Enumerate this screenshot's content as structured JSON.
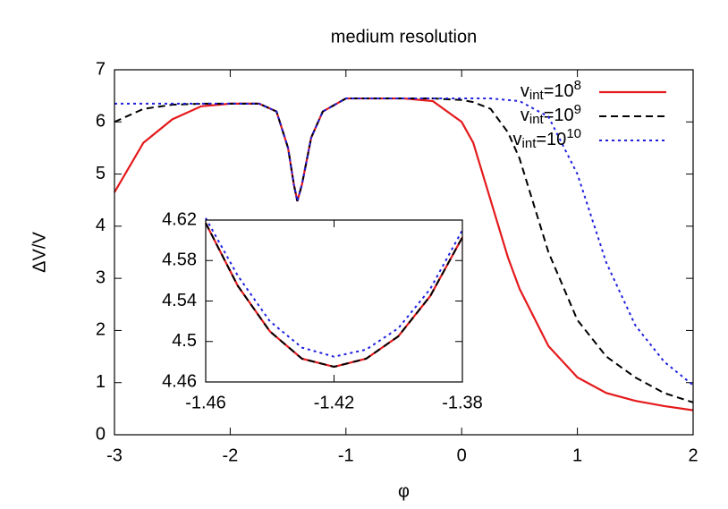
{
  "chart_data": [
    {
      "type": "line",
      "title": "medium resolution",
      "xlabel": "φ",
      "ylabel": "ΔV/V",
      "x": [
        -3,
        -2.75,
        -2.5,
        -2.25,
        -2,
        -1.75,
        -1.6,
        -1.5,
        -1.45,
        -1.42,
        -1.38,
        -1.3,
        -1.2,
        -1,
        -0.75,
        -0.5,
        -0.25,
        0,
        0.1,
        0.25,
        0.4,
        0.5,
        0.75,
        1,
        1.25,
        1.5,
        1.75,
        2
      ],
      "series": [
        {
          "name": "v_{int}=10^{8}",
          "color": "#e41a1c",
          "style": "solid",
          "values": [
            4.65,
            5.6,
            6.05,
            6.3,
            6.35,
            6.35,
            6.2,
            5.5,
            4.8,
            4.48,
            4.8,
            5.7,
            6.2,
            6.45,
            6.45,
            6.45,
            6.4,
            6.0,
            5.6,
            4.5,
            3.4,
            2.8,
            1.7,
            1.1,
            0.8,
            0.65,
            0.55,
            0.47
          ]
        },
        {
          "name": "v_{int}=10^{9}",
          "color": "#000000",
          "style": "dashed",
          "values": [
            6.0,
            6.25,
            6.33,
            6.35,
            6.35,
            6.35,
            6.2,
            5.5,
            4.8,
            4.48,
            4.8,
            5.7,
            6.2,
            6.45,
            6.45,
            6.45,
            6.45,
            6.42,
            6.38,
            6.25,
            5.8,
            5.3,
            3.5,
            2.2,
            1.5,
            1.1,
            0.8,
            0.62
          ]
        },
        {
          "name": "v_{int}=10^{10}",
          "color": "#1f1fe0",
          "style": "dotted",
          "values": [
            6.35,
            6.35,
            6.35,
            6.35,
            6.35,
            6.35,
            6.2,
            5.5,
            4.8,
            4.48,
            4.8,
            5.7,
            6.2,
            6.45,
            6.45,
            6.45,
            6.45,
            6.45,
            6.45,
            6.45,
            6.42,
            6.4,
            6.1,
            5.0,
            3.3,
            2.1,
            1.4,
            0.95
          ]
        }
      ],
      "xlim": [
        -3,
        2
      ],
      "xticks": [
        -3,
        -2,
        -1,
        0,
        1,
        2
      ],
      "ylim": [
        0,
        7
      ],
      "yticks": [
        0,
        1,
        2,
        3,
        4,
        5,
        6,
        7
      ],
      "legend": "upper right"
    },
    {
      "type": "line",
      "x": [
        -1.46,
        -1.45,
        -1.44,
        -1.43,
        -1.42,
        -1.41,
        -1.4,
        -1.39,
        -1.38
      ],
      "series": [
        {
          "color": "#e41a1c",
          "style": "solid",
          "values": [
            4.617,
            4.555,
            4.51,
            4.483,
            4.475,
            4.483,
            4.505,
            4.545,
            4.603
          ]
        },
        {
          "color": "#000000",
          "style": "dashed",
          "values": [
            4.617,
            4.555,
            4.51,
            4.483,
            4.475,
            4.483,
            4.505,
            4.545,
            4.603
          ]
        },
        {
          "color": "#1f1fe0",
          "style": "dotted",
          "values": [
            4.622,
            4.565,
            4.52,
            4.494,
            4.485,
            4.492,
            4.513,
            4.552,
            4.61
          ]
        }
      ],
      "xlim": [
        -1.46,
        -1.38
      ],
      "xticks": [
        -1.46,
        -1.42,
        -1.38
      ],
      "ylim": [
        4.46,
        4.62
      ],
      "yticks": [
        4.46,
        4.5,
        4.54,
        4.58,
        4.62
      ]
    }
  ]
}
